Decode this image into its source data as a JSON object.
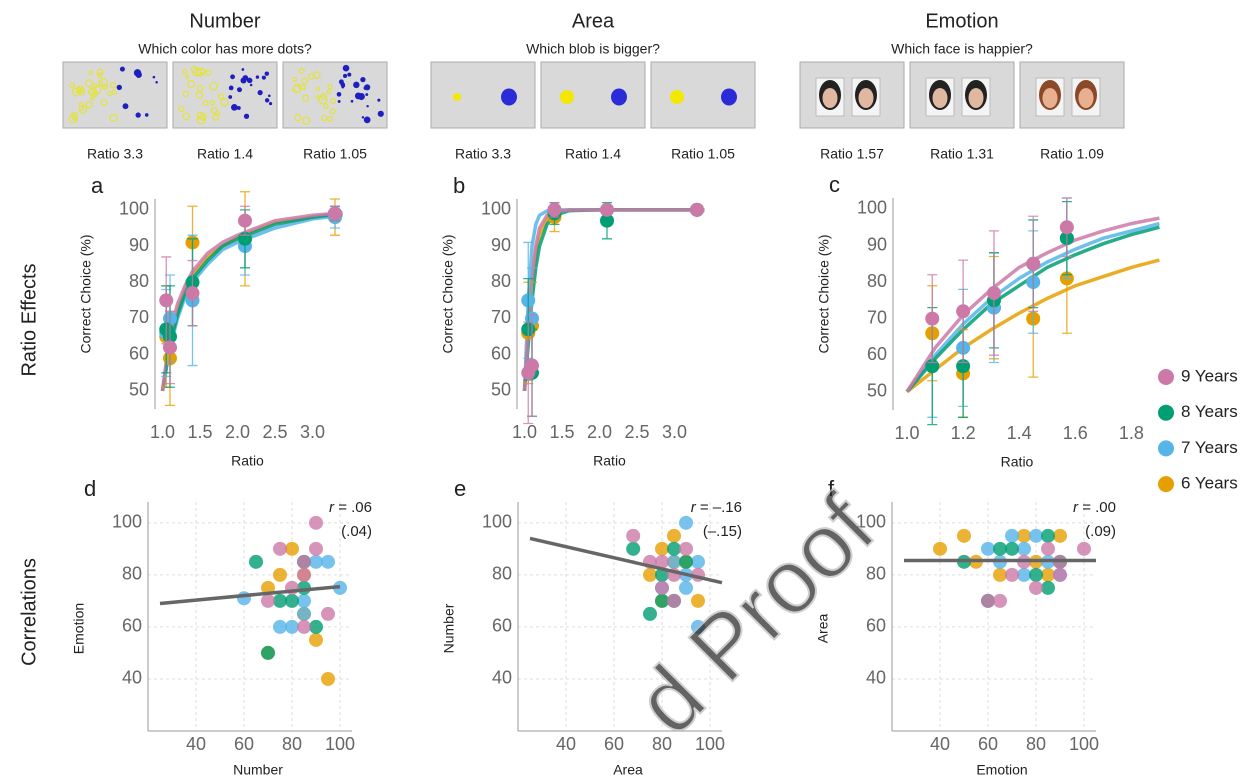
{
  "tasks": [
    {
      "title": "Number",
      "question": "Which color has more dots?",
      "ratios": [
        "Ratio 3.3",
        "Ratio 1.4",
        "Ratio 1.05"
      ]
    },
    {
      "title": "Area",
      "question": "Which blob is bigger?",
      "ratios": [
        "Ratio 3.3",
        "Ratio 1.4",
        "Ratio 1.05"
      ]
    },
    {
      "title": "Emotion",
      "question": "Which face is happier?",
      "ratios": [
        "Ratio 1.57",
        "Ratio 1.31",
        "Ratio 1.09"
      ]
    }
  ],
  "row_labels": [
    "Ratio Effects",
    "Correlations"
  ],
  "legend": [
    {
      "name": "9 Years",
      "color": "#cc79a7"
    },
    {
      "name": "8 Years",
      "color": "#009e73"
    },
    {
      "name": "7 Years",
      "color": "#56b4e9"
    },
    {
      "name": "6 Years",
      "color": "#e69f00"
    }
  ],
  "watermark": "d Proof",
  "chart_data": [
    {
      "type": "scatter",
      "panel": "a",
      "xlabel": "Ratio",
      "ylabel": "Correct Choice (%)",
      "xlim": [
        0.9,
        3.5
      ],
      "ylim": [
        45,
        103
      ],
      "xticks": [
        {
          "value": 1,
          "label": "1.0"
        },
        1.5,
        {
          "value": 2,
          "label": "2.0"
        },
        2.5,
        {
          "value": 3,
          "label": "3.0"
        }
      ],
      "yticks": [
        50,
        60,
        70,
        80,
        90,
        100
      ],
      "grid": false,
      "series": [
        {
          "x": [
            1.05,
            1.1,
            1.4,
            2.1,
            3.3
          ],
          "values": [
            75,
            62,
            77,
            97,
            99
          ],
          "errors": [
            12,
            10,
            9,
            4,
            2
          ],
          "fit": {
            "x": [
              1.0,
              1.1,
              1.2,
              1.3,
              1.4,
              1.6,
              1.8,
              2.0,
              2.5,
              3.0,
              3.4
            ],
            "values": [
              50,
              66,
              74,
              79,
              83,
              88,
              91,
              93,
              97,
              98.5,
              99.2
            ]
          }
        },
        {
          "x": [
            1.05,
            1.1,
            1.4,
            2.1,
            3.3
          ],
          "values": [
            67,
            65,
            80,
            92,
            99
          ],
          "errors": [
            12,
            14,
            12,
            8,
            2
          ],
          "fit": {
            "x": [
              1.0,
              1.1,
              1.2,
              1.3,
              1.4,
              1.6,
              1.8,
              2.0,
              2.5,
              3.0,
              3.4
            ],
            "values": [
              50,
              63,
              71,
              77,
              81,
              86,
              90,
              92,
              96,
              98,
              99
            ]
          }
        },
        {
          "x": [
            1.05,
            1.1,
            1.4,
            2.1,
            3.3
          ],
          "values": [
            66,
            70,
            75,
            90,
            98
          ],
          "errors": [
            12,
            12,
            18,
            8,
            3
          ],
          "fit": {
            "x": [
              1.0,
              1.1,
              1.2,
              1.3,
              1.4,
              1.6,
              1.8,
              2.0,
              2.5,
              3.0,
              3.4
            ],
            "values": [
              50,
              62,
              70,
              76,
              80,
              85,
              89,
              91,
              95,
              97.5,
              98.5
            ]
          }
        },
        {
          "x": [
            1.05,
            1.1,
            1.4,
            2.1,
            3.3
          ],
          "values": [
            65,
            59,
            91,
            92,
            98
          ],
          "errors": [
            14,
            13,
            10,
            13,
            5
          ],
          "fit": {
            "x": [
              1.0,
              1.1,
              1.2,
              1.3,
              1.4,
              1.6,
              1.8,
              2.0,
              2.5,
              3.0,
              3.4
            ],
            "values": [
              50,
              64,
              72,
              78,
              82,
              87,
              90,
              92.5,
              96.5,
              98,
              99
            ]
          }
        }
      ]
    },
    {
      "type": "scatter",
      "panel": "b",
      "xlabel": "Ratio",
      "ylabel": "Correct Choice (%)",
      "xlim": [
        0.9,
        3.5
      ],
      "ylim": [
        45,
        103
      ],
      "xticks": [
        {
          "value": 1,
          "label": "1.0"
        },
        1.5,
        {
          "value": 2,
          "label": "2.0"
        },
        2.5,
        {
          "value": 3,
          "label": "3.0"
        }
      ],
      "yticks": [
        50,
        60,
        70,
        80,
        90,
        100
      ],
      "grid": false,
      "series": [
        {
          "x": [
            1.05,
            1.1,
            1.4,
            2.1,
            3.3
          ],
          "values": [
            55,
            57,
            100,
            100,
            100
          ],
          "errors": [
            14,
            14,
            2,
            1,
            1
          ],
          "fit": {
            "x": [
              1.0,
              1.05,
              1.1,
              1.15,
              1.2,
              1.3,
              1.4,
              1.6,
              2.0,
              3.4
            ],
            "values": [
              50,
              67,
              81,
              90,
              95,
              98.5,
              99.5,
              100,
              100,
              100
            ]
          }
        },
        {
          "x": [
            1.05,
            1.1,
            1.4,
            2.1,
            3.3
          ],
          "values": [
            67,
            55,
            99,
            97,
            100
          ],
          "errors": [
            14,
            12,
            3,
            5,
            1
          ],
          "fit": {
            "x": [
              1.0,
              1.05,
              1.1,
              1.15,
              1.2,
              1.3,
              1.4,
              1.6,
              2.0,
              3.4
            ],
            "values": [
              50,
              63,
              75,
              84,
              90,
              96,
              98.5,
              99.8,
              100,
              100
            ]
          }
        },
        {
          "x": [
            1.05,
            1.1,
            1.4,
            2.1,
            3.3
          ],
          "values": [
            75,
            70,
            100,
            100,
            100
          ],
          "errors": [
            16,
            14,
            2,
            1,
            1
          ],
          "fit": {
            "x": [
              1.0,
              1.05,
              1.1,
              1.15,
              1.2,
              1.3,
              1.4,
              1.6,
              2.0,
              3.4
            ],
            "values": [
              50,
              75,
              90,
              96,
              98.5,
              99.7,
              100,
              100,
              100,
              100
            ]
          }
        },
        {
          "x": [
            1.05,
            1.1,
            1.4,
            2.1,
            3.3
          ],
          "values": [
            66,
            68,
            98,
            100,
            100
          ],
          "errors": [
            14,
            12,
            4,
            1,
            1
          ],
          "fit": {
            "x": [
              1.0,
              1.05,
              1.1,
              1.15,
              1.2,
              1.3,
              1.4,
              1.6,
              2.0,
              3.4
            ],
            "values": [
              50,
              65,
              79,
              88,
              93,
              97.5,
              99.3,
              100,
              100,
              100
            ]
          }
        }
      ]
    },
    {
      "type": "scatter",
      "panel": "c",
      "xlabel": "Ratio",
      "ylabel": "Correct Choice (%)",
      "xlim": [
        0.95,
        1.87
      ],
      "ylim": [
        45,
        103
      ],
      "xticks": [
        {
          "value": 1,
          "label": "1.0"
        },
        1.2,
        1.4,
        1.6,
        1.8
      ],
      "yticks": [
        50,
        60,
        70,
        80,
        90,
        100
      ],
      "grid": false,
      "series": [
        {
          "x": [
            1.09,
            1.2,
            1.31,
            1.45,
            1.57
          ],
          "values": [
            70,
            72,
            77,
            85,
            95
          ],
          "errors": [
            12,
            14,
            17,
            13,
            8
          ],
          "fit": {
            "x": [
              1.0,
              1.1,
              1.2,
              1.3,
              1.4,
              1.5,
              1.6,
              1.7,
              1.8,
              1.9
            ],
            "values": [
              50,
              62,
              71,
              78,
              84,
              88,
              91.5,
              94,
              96,
              97.5
            ]
          }
        },
        {
          "x": [
            1.09,
            1.2,
            1.31,
            1.45,
            1.57
          ],
          "values": [
            57,
            57,
            75,
            85,
            92
          ],
          "errors": [
            16,
            14,
            13,
            12,
            10
          ],
          "fit": {
            "x": [
              1.0,
              1.1,
              1.2,
              1.3,
              1.4,
              1.5,
              1.6,
              1.7,
              1.8,
              1.9
            ],
            "values": [
              50,
              59,
              67,
              74,
              79,
              84,
              87.5,
              90.5,
              93,
              95
            ]
          }
        },
        {
          "x": [
            1.09,
            1.2,
            1.31,
            1.45,
            1.57
          ],
          "values": [
            57,
            62,
            73,
            80,
            92
          ],
          "errors": [
            14,
            16,
            15,
            14,
            11
          ],
          "fit": {
            "x": [
              1.0,
              1.1,
              1.2,
              1.3,
              1.4,
              1.5,
              1.6,
              1.7,
              1.8,
              1.9
            ],
            "values": [
              50,
              60,
              68.5,
              75.5,
              81,
              85.5,
              89,
              92,
              94,
              96
            ]
          }
        },
        {
          "x": [
            1.09,
            1.2,
            1.31,
            1.45,
            1.57
          ],
          "values": [
            66,
            55,
            73,
            70,
            81
          ],
          "errors": [
            13,
            12,
            14,
            16,
            15
          ],
          "fit": {
            "x": [
              1.0,
              1.1,
              1.2,
              1.3,
              1.4,
              1.5,
              1.6,
              1.7,
              1.8,
              1.9
            ],
            "values": [
              50,
              56,
              62,
              67,
              71.5,
              75.5,
              79,
              81.5,
              84,
              86
            ]
          }
        }
      ]
    },
    {
      "type": "scatter",
      "panel": "d",
      "xlabel": "Number",
      "ylabel": "Emotion",
      "xlim": [
        20,
        105
      ],
      "ylim": [
        20,
        108
      ],
      "xticks": [
        40,
        60,
        80,
        100
      ],
      "yticks": [
        40,
        60,
        80,
        100
      ],
      "grid": true,
      "annotation": {
        "r": "r",
        "rest": " = .06",
        "partial": "(.04)"
      },
      "trend": {
        "x": [
          25,
          100
        ],
        "values": [
          69,
          75.5
        ]
      },
      "series": [
        {
          "x": [
            75,
            90,
            85,
            70,
            85,
            95,
            80,
            90,
            85
          ],
          "values": [
            90,
            100,
            85,
            70,
            60,
            65,
            75,
            90,
            80
          ]
        },
        {
          "x": [
            65,
            70,
            85,
            80,
            90,
            75,
            85
          ],
          "values": [
            85,
            50,
            85,
            70,
            60,
            70,
            75
          ]
        },
        {
          "x": [
            60,
            75,
            80,
            85,
            90,
            95,
            100,
            85
          ],
          "values": [
            71,
            60,
            60,
            65,
            85,
            85,
            75,
            70
          ]
        },
        {
          "x": [
            70,
            80,
            85,
            90,
            95,
            70,
            75,
            85
          ],
          "values": [
            50,
            90,
            80,
            55,
            40,
            75,
            80,
            65
          ]
        }
      ]
    },
    {
      "type": "scatter",
      "panel": "e",
      "xlabel": "Area",
      "ylabel": "Number",
      "xlim": [
        20,
        105
      ],
      "ylim": [
        20,
        108
      ],
      "xticks": [
        40,
        60,
        80,
        100
      ],
      "yticks": [
        40,
        60,
        80,
        100
      ],
      "grid": true,
      "annotation": {
        "r": "r",
        "rest": " = –.16",
        "partial": "(–.15)"
      },
      "trend": {
        "x": [
          25,
          105
        ],
        "values": [
          94,
          77
        ]
      },
      "series": [
        {
          "x": [
            68,
            80,
            85,
            90,
            85,
            75,
            95,
            80
          ],
          "values": [
            95,
            85,
            80,
            90,
            70,
            85,
            80,
            75
          ]
        },
        {
          "x": [
            68,
            75,
            80,
            85,
            90,
            85,
            80
          ],
          "values": [
            90,
            65,
            80,
            90,
            85,
            70,
            70
          ]
        },
        {
          "x": [
            90,
            85,
            90,
            95,
            95,
            80,
            90
          ],
          "values": [
            100,
            85,
            80,
            85,
            60,
            75,
            75
          ]
        },
        {
          "x": [
            80,
            85,
            90,
            95,
            75,
            80,
            85
          ],
          "values": [
            90,
            95,
            85,
            70,
            80,
            70,
            85
          ]
        }
      ]
    },
    {
      "type": "scatter",
      "panel": "f",
      "xlabel": "Emotion",
      "ylabel": "Area",
      "xlim": [
        20,
        105
      ],
      "ylim": [
        20,
        108
      ],
      "xticks": [
        40,
        60,
        80,
        100
      ],
      "yticks": [
        40,
        60,
        80,
        100
      ],
      "grid": true,
      "annotation": {
        "r": "r",
        "rest": " = .00",
        "partial": "(.09)"
      },
      "trend": {
        "x": [
          25,
          105
        ],
        "values": [
          85.5,
          85.5
        ]
      },
      "series": [
        {
          "x": [
            60,
            65,
            70,
            75,
            80,
            85,
            90,
            100,
            90
          ],
          "values": [
            70,
            70,
            80,
            85,
            75,
            90,
            80,
            90,
            85
          ]
        },
        {
          "x": [
            50,
            60,
            65,
            80,
            85,
            85,
            70,
            90
          ],
          "values": [
            85,
            70,
            90,
            80,
            95,
            75,
            90,
            85
          ]
        },
        {
          "x": [
            60,
            70,
            75,
            80,
            85,
            75,
            90,
            65
          ],
          "values": [
            90,
            95,
            90,
            95,
            85,
            80,
            80,
            85
          ]
        },
        {
          "x": [
            40,
            50,
            55,
            65,
            75,
            80,
            90,
            85
          ],
          "values": [
            90,
            95,
            85,
            80,
            95,
            85,
            95,
            80
          ]
        }
      ]
    }
  ]
}
